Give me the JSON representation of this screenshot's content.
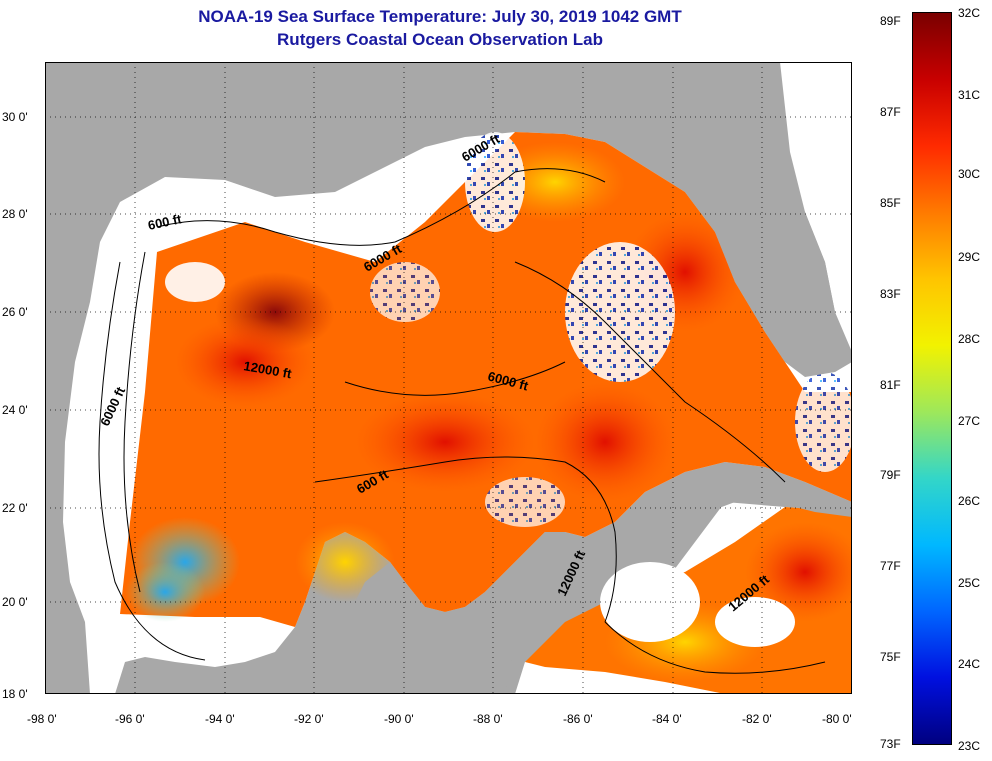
{
  "title": "NOAA-19 Sea Surface Temperature:  July 30, 2019 1042 GMT",
  "subtitle": "Rutgers Coastal Ocean Observation Lab",
  "map": {
    "lat_labels": [
      "30 0'",
      "28 0'",
      "26 0'",
      "24 0'",
      "22 0'",
      "20 0'",
      "18 0'"
    ],
    "lon_labels": [
      "-98 0'",
      "-96 0'",
      "-94 0'",
      "-92 0'",
      "-90 0'",
      "-88 0'",
      "-86 0'",
      "-84 0'",
      "-82 0'",
      "-80 0'"
    ],
    "lat_range": [
      18,
      31
    ],
    "lon_range": [
      -98,
      -80
    ],
    "contour_labels": [
      "600 ft",
      "6000 ft",
      "12000 ft",
      "6000 ft",
      "600 ft",
      "6000 ft",
      "12000 ft",
      "12000 ft",
      "6000 ft"
    ],
    "land_color": "#a8a8a8",
    "cloud_color": "#ffffff"
  },
  "colorbar": {
    "fahrenheit_labels": [
      "89F",
      "87F",
      "85F",
      "83F",
      "81F",
      "79F",
      "77F",
      "75F",
      "73F"
    ],
    "celsius_labels": [
      "32C",
      "31C",
      "30C",
      "29C",
      "28C",
      "27C",
      "26C",
      "25C",
      "24C",
      "23C"
    ],
    "range_c": [
      23,
      32
    ],
    "colors": [
      "#7a0000",
      "#c80000",
      "#ff2a00",
      "#ff7a00",
      "#ffc400",
      "#f2f200",
      "#9ee85a",
      "#33d6c8",
      "#00b8ff",
      "#0066ff",
      "#0010e0",
      "#000080"
    ]
  }
}
